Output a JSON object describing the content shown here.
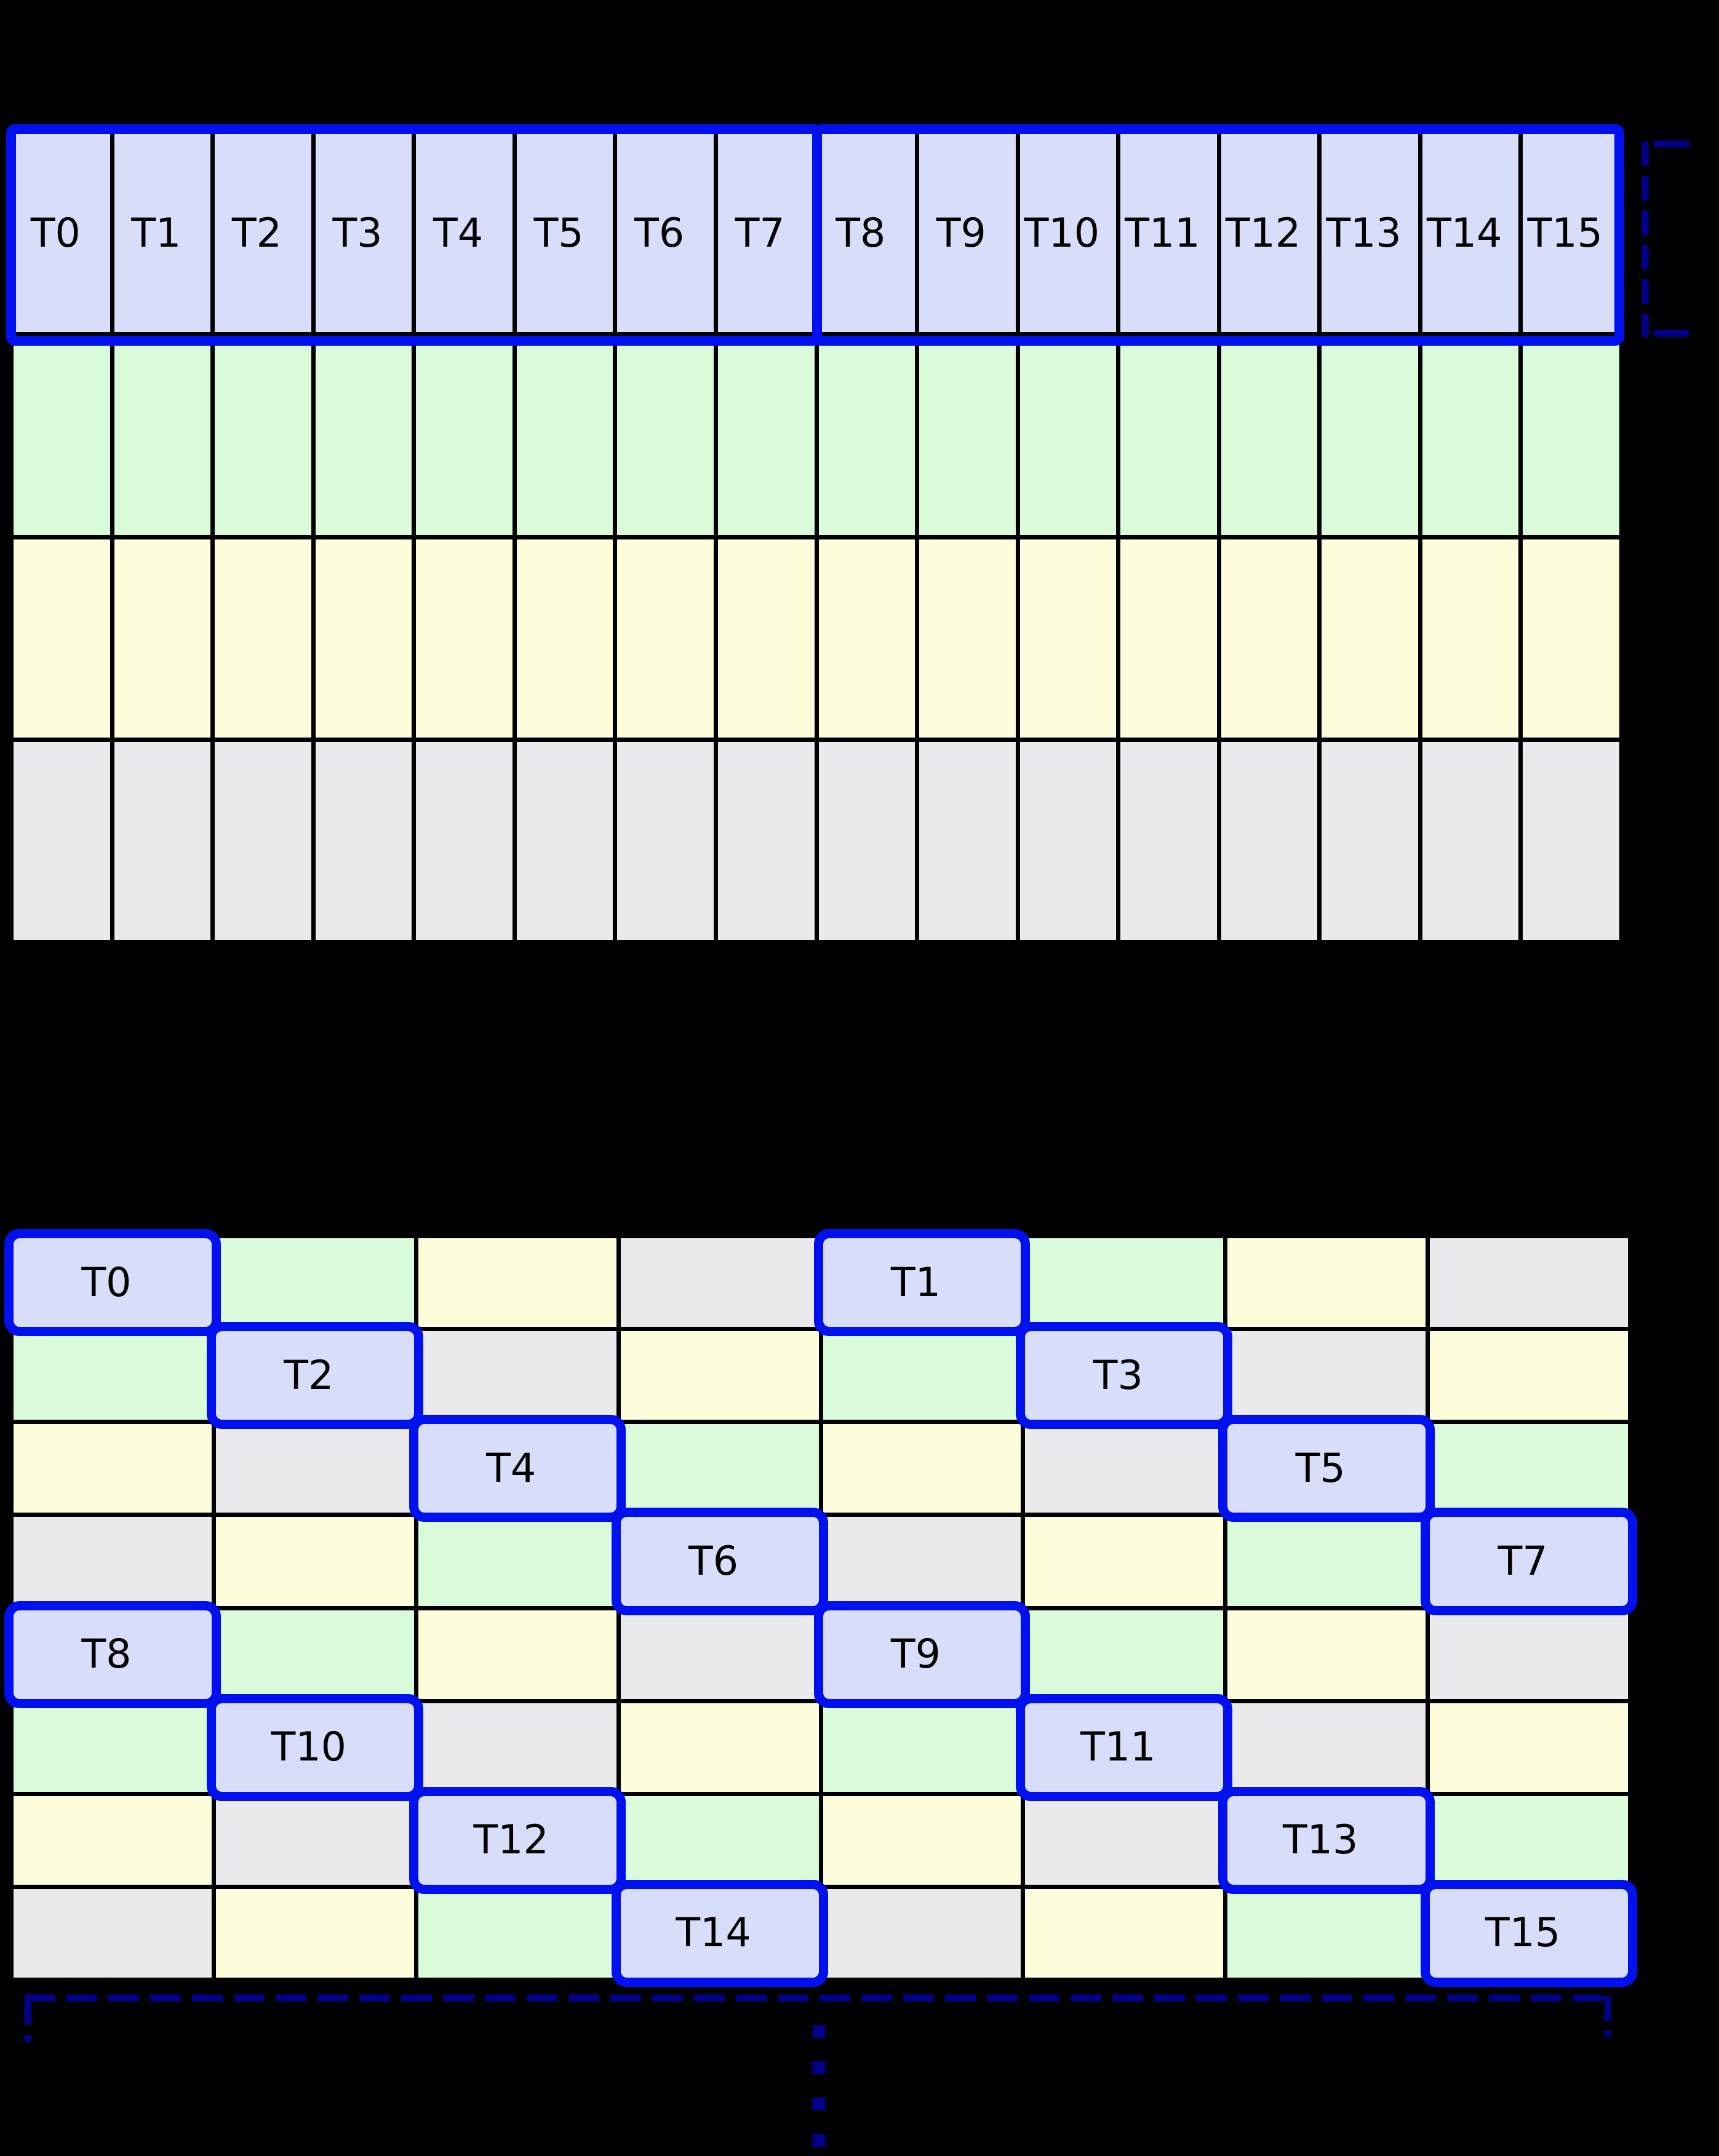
{
  "colors": {
    "background": "#000000",
    "gridline": "#000000",
    "cell_blue": "#d8def9",
    "cell_green": "#d9fbd9",
    "cell_yellow": "#fdfddc",
    "cell_gray": "#eaeaec",
    "highlight_border": "#0010ee",
    "bracket": "#00008b",
    "label_text": "#000000"
  },
  "top_grid": {
    "columns": 16,
    "rows": [
      {
        "color": "blue",
        "labels": [
          "T0",
          "T1",
          "T2",
          "T3",
          "T4",
          "T5",
          "T6",
          "T7",
          "T8",
          "T9",
          "T10",
          "T11",
          "T12",
          "T13",
          "T14",
          "T15"
        ]
      },
      {
        "color": "green"
      },
      {
        "color": "yellow"
      },
      {
        "color": "gray"
      }
    ]
  },
  "bottom_grid": {
    "columns": 8,
    "rows": [
      [
        {
          "c": "blue",
          "l": "T0"
        },
        {
          "c": "green"
        },
        {
          "c": "yellow"
        },
        {
          "c": "gray"
        },
        {
          "c": "blue",
          "l": "T1"
        },
        {
          "c": "green"
        },
        {
          "c": "yellow"
        },
        {
          "c": "gray"
        }
      ],
      [
        {
          "c": "green"
        },
        {
          "c": "blue",
          "l": "T2"
        },
        {
          "c": "gray"
        },
        {
          "c": "yellow"
        },
        {
          "c": "green"
        },
        {
          "c": "blue",
          "l": "T3"
        },
        {
          "c": "gray"
        },
        {
          "c": "yellow"
        }
      ],
      [
        {
          "c": "yellow"
        },
        {
          "c": "gray"
        },
        {
          "c": "blue",
          "l": "T4"
        },
        {
          "c": "green"
        },
        {
          "c": "yellow"
        },
        {
          "c": "gray"
        },
        {
          "c": "blue",
          "l": "T5"
        },
        {
          "c": "green"
        }
      ],
      [
        {
          "c": "gray"
        },
        {
          "c": "yellow"
        },
        {
          "c": "green"
        },
        {
          "c": "blue",
          "l": "T6"
        },
        {
          "c": "gray"
        },
        {
          "c": "yellow"
        },
        {
          "c": "green"
        },
        {
          "c": "blue",
          "l": "T7"
        }
      ],
      [
        {
          "c": "blue",
          "l": "T8"
        },
        {
          "c": "green"
        },
        {
          "c": "yellow"
        },
        {
          "c": "gray"
        },
        {
          "c": "blue",
          "l": "T9"
        },
        {
          "c": "green"
        },
        {
          "c": "yellow"
        },
        {
          "c": "gray"
        }
      ],
      [
        {
          "c": "green"
        },
        {
          "c": "blue",
          "l": "T10"
        },
        {
          "c": "gray"
        },
        {
          "c": "yellow"
        },
        {
          "c": "green"
        },
        {
          "c": "blue",
          "l": "T11"
        },
        {
          "c": "gray"
        },
        {
          "c": "yellow"
        }
      ],
      [
        {
          "c": "yellow"
        },
        {
          "c": "gray"
        },
        {
          "c": "blue",
          "l": "T12"
        },
        {
          "c": "green"
        },
        {
          "c": "yellow"
        },
        {
          "c": "gray"
        },
        {
          "c": "blue",
          "l": "T13"
        },
        {
          "c": "green"
        }
      ],
      [
        {
          "c": "gray"
        },
        {
          "c": "yellow"
        },
        {
          "c": "green"
        },
        {
          "c": "blue",
          "l": "T14"
        },
        {
          "c": "gray"
        },
        {
          "c": "yellow"
        },
        {
          "c": "green"
        },
        {
          "c": "blue",
          "l": "T15"
        }
      ]
    ]
  }
}
